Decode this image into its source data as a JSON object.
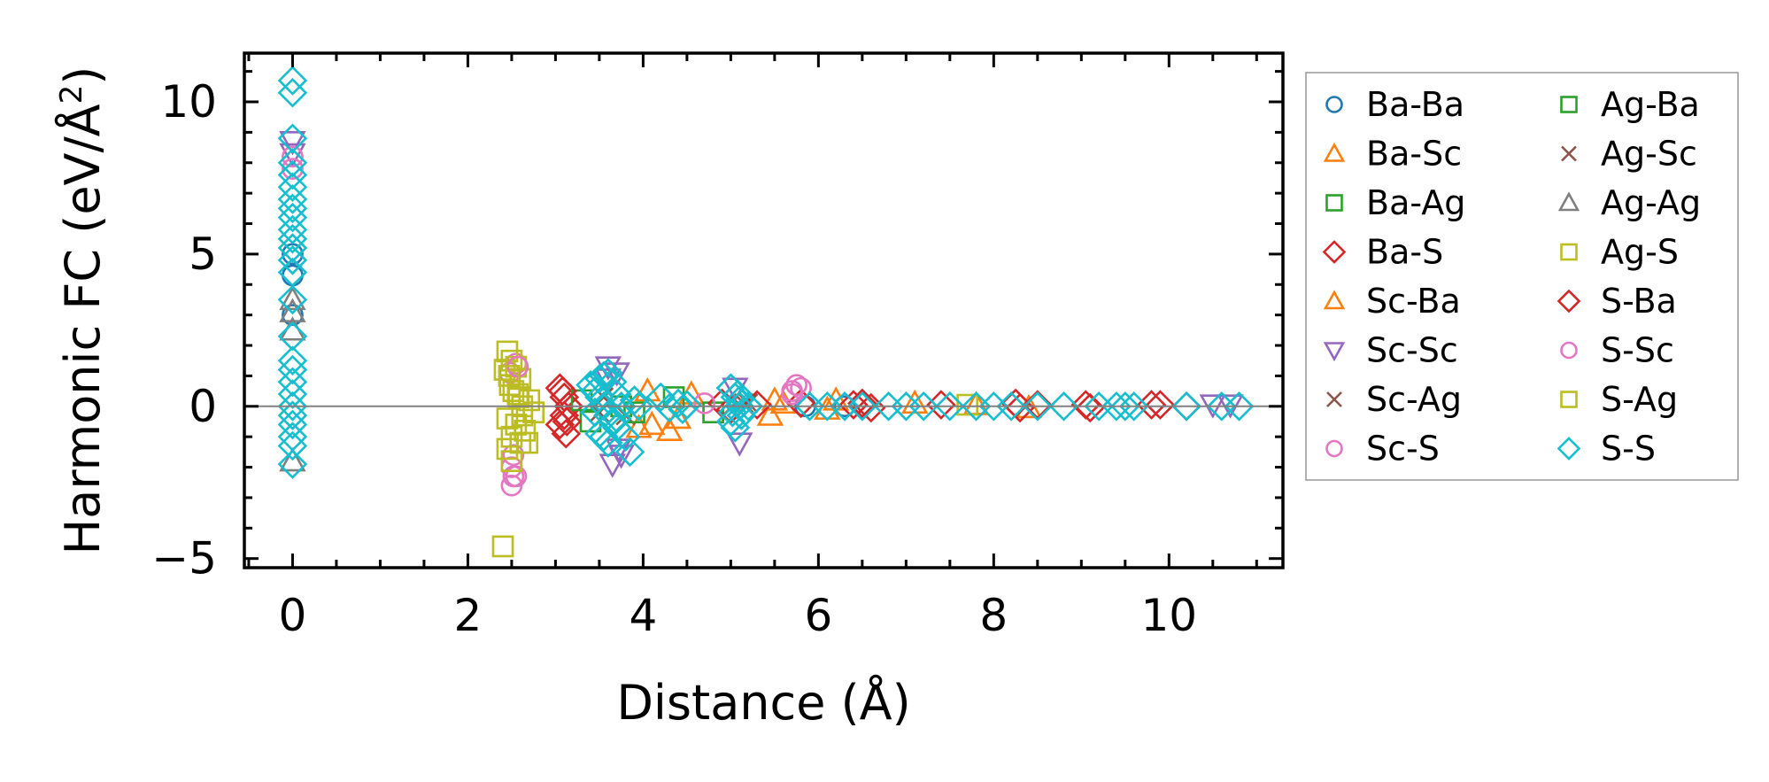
{
  "chart_data": {
    "type": "scatter",
    "title": "",
    "xlabel": "Distance (Å)",
    "ylabel": "Harmonic FC (eV/Å",
    "ylabel_superscript": "2",
    "ylabel_close": ")",
    "xlim": [
      -0.55,
      11.3
    ],
    "ylim": [
      -5.3,
      11.6
    ],
    "xticks": [
      0,
      2,
      4,
      6,
      8,
      10
    ],
    "xtick_labels": [
      "0",
      "2",
      "4",
      "6",
      "8",
      "10"
    ],
    "yticks": [
      -5,
      0,
      5,
      10
    ],
    "ytick_labels": [
      "−5",
      "0",
      "5",
      "10"
    ],
    "zero_line": 0,
    "legend_position": "outside right",
    "series": [
      {
        "name": "Ba-Ba",
        "marker": "circle",
        "color": "#1f77b4",
        "x": [
          0,
          0,
          0,
          5.85,
          6.3
        ],
        "y": [
          4.3,
          3.0,
          5.0,
          0.0,
          0.0
        ]
      },
      {
        "name": "Ba-Sc",
        "marker": "triangle-up",
        "color": "#ff7f0e",
        "x": [
          3.95,
          4.1,
          4.3,
          4.55,
          5.45,
          5.6,
          6.2,
          7.1,
          8.4
        ],
        "y": [
          -0.7,
          -0.6,
          -0.8,
          0.4,
          -0.3,
          0.1,
          0.2,
          0.1,
          -0.05
        ]
      },
      {
        "name": "Ba-Ag",
        "marker": "square",
        "color": "#2ca02c",
        "x": [
          3.4,
          3.75,
          4.35,
          4.8
        ],
        "y": [
          -0.5,
          0.0,
          0.3,
          -0.2
        ]
      },
      {
        "name": "Ba-S",
        "marker": "diamond",
        "color": "#d62728",
        "x": [
          3.05,
          3.1,
          3.15,
          3.1,
          3.05,
          3.12,
          4.9,
          5.0,
          5.8,
          6.4,
          6.6,
          7.4,
          8.25,
          8.5,
          9.1,
          9.8,
          10.2
        ],
        "y": [
          0.6,
          0.3,
          0.0,
          -0.3,
          -0.6,
          -0.9,
          0.1,
          -0.1,
          0.1,
          0.05,
          -0.05,
          0.05,
          0.1,
          0.05,
          -0.05,
          0.05,
          0.0
        ]
      },
      {
        "name": "Sc-Ba",
        "marker": "triangle-up",
        "color": "#ff7f0e",
        "x": [
          4.05,
          4.4,
          5.5,
          6.1,
          7.8
        ],
        "y": [
          0.5,
          -0.4,
          0.2,
          -0.1,
          0.05
        ]
      },
      {
        "name": "Sc-Sc",
        "marker": "triangle-down",
        "color": "#9467bd",
        "x": [
          0,
          0,
          3.6,
          3.7,
          3.65,
          3.72,
          3.6,
          3.75,
          5.05,
          5.1,
          10.5,
          10.7
        ],
        "y": [
          8.7,
          8.3,
          1.3,
          1.1,
          -1.9,
          -1.4,
          0.9,
          -1.6,
          0.6,
          -1.2,
          0.05,
          0.05
        ]
      },
      {
        "name": "Sc-Ag",
        "marker": "x",
        "color": "#8c564b",
        "x": [
          3.55,
          3.8,
          5.15
        ],
        "y": [
          0.3,
          -0.3,
          0.1
        ]
      },
      {
        "name": "Sc-S",
        "marker": "circle",
        "color": "#e377c2",
        "x": [
          0,
          0,
          2.5,
          2.55,
          2.5,
          2.55,
          2.48,
          2.52,
          5.75,
          5.7,
          5.8
        ],
        "y": [
          8.2,
          7.8,
          -2.6,
          -2.3,
          -2.0,
          1.4,
          1.1,
          -1.6,
          0.7,
          0.5,
          0.6
        ]
      },
      {
        "name": "Ag-Ba",
        "marker": "square",
        "color": "#2ca02c",
        "x": [
          3.3,
          3.9
        ],
        "y": [
          0.2,
          -0.2
        ]
      },
      {
        "name": "Ag-Sc",
        "marker": "x",
        "color": "#8c564b",
        "x": [
          3.5,
          5.2
        ],
        "y": [
          -0.2,
          0.1
        ]
      },
      {
        "name": "Ag-Ag",
        "marker": "triangle-up",
        "color": "#7f7f7f",
        "x": [
          0,
          0,
          0,
          0
        ],
        "y": [
          3.5,
          3.1,
          2.5,
          -1.8
        ]
      },
      {
        "name": "Ag-S",
        "marker": "square",
        "color": "#bcbd22",
        "x": [
          2.45,
          2.5,
          2.42,
          2.55,
          2.6,
          2.48,
          2.52,
          2.58,
          2.62,
          2.7,
          2.75,
          2.45,
          2.55,
          2.65,
          2.5,
          2.6,
          2.45,
          2.4,
          7.7
        ],
        "y": [
          1.8,
          1.5,
          1.2,
          1.3,
          0.9,
          0.7,
          0.5,
          0.3,
          0.0,
          0.2,
          -0.2,
          -0.4,
          -0.6,
          -0.8,
          -1.0,
          -1.2,
          -1.4,
          -4.6,
          0.05
        ]
      },
      {
        "name": "S-Ba",
        "marker": "diamond",
        "color": "#d62728",
        "x": [
          3.08,
          3.13,
          5.3,
          6.5,
          8.3,
          9.05,
          9.9
        ],
        "y": [
          0.5,
          -0.5,
          0.05,
          0.1,
          -0.05,
          0.05,
          0.05
        ]
      },
      {
        "name": "S-Sc",
        "marker": "circle",
        "color": "#e377c2",
        "x": [
          2.52,
          2.57,
          4.7,
          5.7
        ],
        "y": [
          -2.3,
          1.3,
          0.1,
          0.4
        ]
      },
      {
        "name": "S-Ag",
        "marker": "square",
        "color": "#bcbd22",
        "x": [
          2.47,
          2.57,
          2.62,
          2.5,
          2.68
        ],
        "y": [
          1.0,
          0.4,
          -0.3,
          -1.8,
          -1.2
        ]
      },
      {
        "name": "S-S",
        "marker": "diamond",
        "color": "#17becf",
        "x": [
          0,
          0,
          0,
          0,
          0,
          0,
          0,
          0,
          0,
          0,
          0,
          0,
          0,
          0,
          0,
          0,
          0,
          0,
          0,
          0,
          0,
          0,
          0,
          0,
          0,
          0,
          3.4,
          3.45,
          3.5,
          3.55,
          3.6,
          3.65,
          3.7,
          3.5,
          3.55,
          3.6,
          3.65,
          3.7,
          3.75,
          3.5,
          3.6,
          3.55,
          3.7,
          3.8,
          3.45,
          3.9,
          3.85,
          3.95,
          4.2,
          4.4,
          4.45,
          4.5,
          4.3,
          5.0,
          5.05,
          5.1,
          5.12,
          5.0,
          5.05,
          5.1,
          5.02,
          5.08,
          5.2,
          5.9,
          6.1,
          6.3,
          6.5,
          6.8,
          7.0,
          7.2,
          7.5,
          7.8,
          8.0,
          8.2,
          8.5,
          8.8,
          9.2,
          9.4,
          9.5,
          9.6,
          10.2,
          10.6,
          10.8
        ],
        "y": [
          10.7,
          10.3,
          8.8,
          8.0,
          7.6,
          7.2,
          6.8,
          6.5,
          6.2,
          5.8,
          5.5,
          5.2,
          4.8,
          4.4,
          3.5,
          2.3,
          1.5,
          1.2,
          0.8,
          0.4,
          0.0,
          -0.3,
          -0.6,
          -1.0,
          -1.3,
          -1.9,
          0.7,
          0.5,
          0.3,
          0.0,
          -0.3,
          -0.5,
          -0.7,
          0.9,
          1.0,
          1.1,
          0.8,
          0.4,
          0.0,
          -0.9,
          -1.2,
          -1.0,
          -0.4,
          -1.0,
          -0.2,
          0.2,
          -1.5,
          0.0,
          0.3,
          0.1,
          -0.1,
          0.05,
          -0.05,
          0.6,
          0.3,
          0.0,
          -0.3,
          -0.5,
          -0.7,
          0.2,
          -0.2,
          0.4,
          0.0,
          0.0,
          0.0,
          0.0,
          0.0,
          0.0,
          0.0,
          0.0,
          0.0,
          0.0,
          0.0,
          0.0,
          0.0,
          0.0,
          0.0,
          0.0,
          0.0,
          0.0,
          0.0,
          0.0,
          0.0
        ]
      }
    ]
  }
}
